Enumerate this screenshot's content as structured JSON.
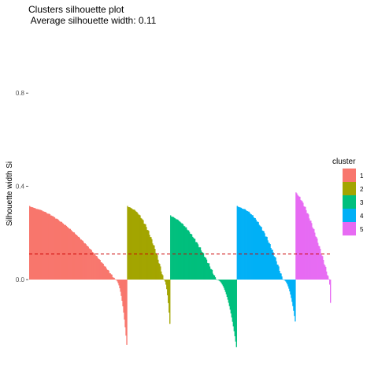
{
  "chart_data": {
    "type": "bar",
    "title": "Clusters silhouette plot",
    "subtitle": " Average silhouette width: 0.11",
    "xlabel": "",
    "ylabel": "Silhouette width Si",
    "ylim": [
      -0.6,
      0.9
    ],
    "yticks": [
      {
        "value": 0.0,
        "label": "0.0"
      },
      {
        "value": 0.4,
        "label": "0.4"
      },
      {
        "value": 0.8,
        "label": "0.8"
      }
    ],
    "grid": false,
    "average_silhouette": 0.11,
    "legend": {
      "title": "cluster",
      "placement": "right",
      "entries": [
        "1",
        "2",
        "3",
        "4",
        "5"
      ]
    },
    "clusters": [
      {
        "name": "1",
        "color": "#F8766D",
        "n": 125,
        "max": 0.31,
        "min": -0.28,
        "positive_fraction": 0.88,
        "shape": 1.6
      },
      {
        "name": "2",
        "color": "#A3A500",
        "n": 55,
        "max": 0.31,
        "min": -0.19,
        "positive_fraction": 0.85,
        "shape": 2.0
      },
      {
        "name": "3",
        "color": "#00BF7D",
        "n": 85,
        "max": 0.27,
        "min": -0.29,
        "positive_fraction": 0.7,
        "shape": 1.6
      },
      {
        "name": "4",
        "color": "#00B0F6",
        "n": 75,
        "max": 0.31,
        "min": -0.18,
        "positive_fraction": 0.78,
        "shape": 2.0
      },
      {
        "name": "5",
        "color": "#E76BF3",
        "n": 45,
        "max": 0.37,
        "min": -0.1,
        "positive_fraction": 0.95,
        "shape": 1.4
      }
    ],
    "reference_line": {
      "value": 0.11,
      "color": "#CC0000",
      "style": "dashed"
    }
  }
}
